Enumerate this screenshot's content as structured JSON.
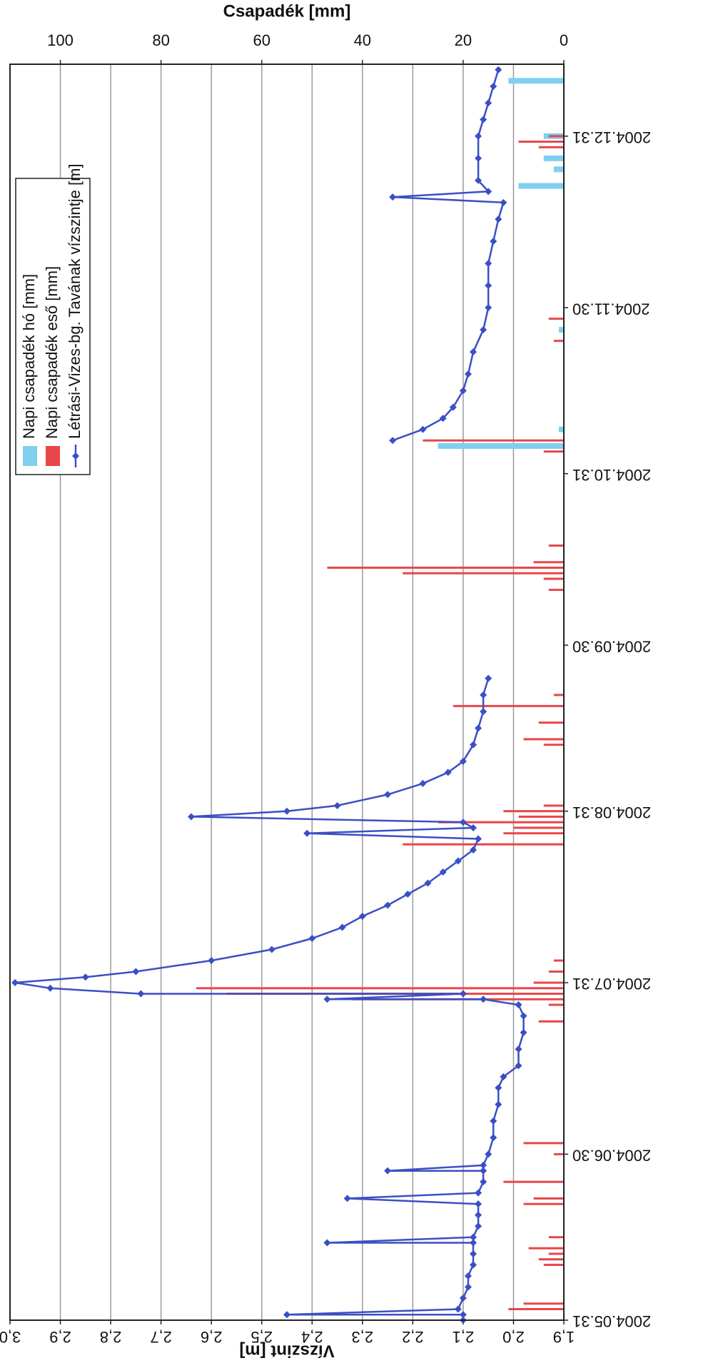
{
  "chart_data": {
    "type": "combo",
    "y_label": "Vízszint [m]",
    "y2_label": "Csapadék [mm]",
    "xlim": [
      "2004.05.31",
      "2005.01.13"
    ],
    "xticks": [
      "2004.05.31",
      "2004.06.30",
      "2004.07.31",
      "2004.08.31",
      "2004.09.30",
      "2004.10.31",
      "2004.11.30",
      "2004.12.31"
    ],
    "ylim": [
      1.9,
      3.0
    ],
    "yticks": [
      {
        "value": 1.9,
        "label": "1,9"
      },
      {
        "value": 2.0,
        "label": "2,0"
      },
      {
        "value": 2.1,
        "label": "2,1"
      },
      {
        "value": 2.2,
        "label": "2,2"
      },
      {
        "value": 2.3,
        "label": "2,3"
      },
      {
        "value": 2.4,
        "label": "2,4"
      },
      {
        "value": 2.5,
        "label": "2,5"
      },
      {
        "value": 2.6,
        "label": "2,6"
      },
      {
        "value": 2.7,
        "label": "2,7"
      },
      {
        "value": 2.8,
        "label": "2,8"
      },
      {
        "value": 2.9,
        "label": "2,9"
      },
      {
        "value": 3.0,
        "label": "3,0"
      }
    ],
    "y2lim": [
      0,
      110
    ],
    "y2ticks": [
      0,
      20,
      40,
      60,
      80,
      100
    ],
    "grid": true,
    "legend": "top-right",
    "series": [
      {
        "name": "Napi csapadék hó [mm]",
        "type": "bar",
        "axis": "y2",
        "color": "#7fd0ef",
        "x": [
          "2004.11.05",
          "2004.11.08",
          "2004.11.26",
          "2004.12.22",
          "2004.12.25",
          "2004.12.27",
          "2004.12.31",
          "2005.01.10"
        ],
        "values": [
          25,
          1,
          1,
          9,
          2,
          4,
          4,
          11
        ]
      },
      {
        "name": "Napi csapadék eső [mm]",
        "type": "bar",
        "axis": "y2",
        "color": "#e8464a",
        "x": [
          "2004.06.02",
          "2004.06.03",
          "2004.06.10",
          "2004.06.11",
          "2004.06.12",
          "2004.06.13",
          "2004.06.15",
          "2004.06.21",
          "2004.06.22",
          "2004.06.25",
          "2004.06.30",
          "2004.07.02",
          "2004.07.24",
          "2004.07.27",
          "2004.07.28",
          "2004.07.29",
          "2004.07.30",
          "2004.07.31",
          "2004.08.02",
          "2004.08.04",
          "2004.08.25",
          "2004.08.27",
          "2004.08.28",
          "2004.08.29",
          "2004.08.30",
          "2004.08.31",
          "2004.09.01",
          "2004.09.12",
          "2004.09.13",
          "2004.09.16",
          "2004.09.19",
          "2004.09.21",
          "2004.10.10",
          "2004.10.12",
          "2004.10.13",
          "2004.10.14",
          "2004.10.15",
          "2004.10.18",
          "2004.11.04",
          "2004.11.06",
          "2004.11.24",
          "2004.11.28",
          "2004.12.29",
          "2004.12.30",
          "2004.12.31"
        ],
        "values": [
          11,
          8,
          4,
          5,
          3,
          7,
          3,
          8,
          6,
          12,
          2,
          8,
          5,
          3,
          42,
          67,
          73,
          6,
          3,
          2,
          32,
          12,
          10,
          25,
          9,
          12,
          4,
          4,
          8,
          5,
          22,
          2,
          3,
          4,
          32,
          47,
          6,
          3,
          4,
          28,
          2,
          3,
          5,
          9,
          3
        ]
      },
      {
        "name": "Létrási-Vizes-bg. Tavának vízszintje [m]",
        "type": "line",
        "axis": "y",
        "color": "#3b4fc4",
        "x": [
          "2004.05.31",
          "2004.06.01",
          "2004.06.01",
          "2004.06.02",
          "2004.06.04",
          "2004.06.06",
          "2004.06.08",
          "2004.06.10",
          "2004.06.12",
          "2004.06.14",
          "2004.06.14",
          "2004.06.15",
          "2004.06.17",
          "2004.06.19",
          "2004.06.21",
          "2004.06.22",
          "2004.06.23",
          "2004.06.25",
          "2004.06.27",
          "2004.06.27",
          "2004.06.28",
          "2004.06.30",
          "2004.07.03",
          "2004.07.06",
          "2004.07.09",
          "2004.07.12",
          "2004.07.14",
          "2004.07.16",
          "2004.07.19",
          "2004.07.22",
          "2004.07.25",
          "2004.07.27",
          "2004.07.28",
          "2004.07.28",
          "2004.07.29",
          "2004.07.29",
          "2004.07.30",
          "2004.07.31",
          "2004.08.01",
          "2004.08.02",
          "2004.08.04",
          "2004.08.06",
          "2004.08.08",
          "2004.08.10",
          "2004.08.12",
          "2004.08.14",
          "2004.08.16",
          "2004.08.18",
          "2004.08.20",
          "2004.08.22",
          "2004.08.24",
          "2004.08.26",
          "2004.08.27",
          "2004.08.28",
          "2004.08.29",
          "2004.08.30",
          "2004.08.31",
          "2004.09.01",
          "2004.09.03",
          "2004.09.05",
          "2004.09.07",
          "2004.09.09",
          "2004.09.12",
          "2004.09.15",
          "2004.09.18",
          "2004.09.21",
          "2004.09.24",
          "2004.10.15",
          "2004.11.06",
          "2004.11.08",
          "2004.11.10",
          "2004.11.12",
          "2004.11.15",
          "2004.11.18",
          "2004.11.22",
          "2004.11.26",
          "2004.11.30",
          "2004.12.04",
          "2004.12.08",
          "2004.12.12",
          "2004.12.16",
          "2004.12.19",
          "2004.12.20",
          "2004.12.21",
          "2004.12.23",
          "2004.12.27",
          "2004.12.31",
          "2005.01.03",
          "2005.01.06",
          "2005.01.09",
          "2005.01.12"
        ],
        "values": [
          2.1,
          2.1,
          2.45,
          2.11,
          2.1,
          2.09,
          2.09,
          2.08,
          2.08,
          2.08,
          2.37,
          2.08,
          2.07,
          2.07,
          2.07,
          2.33,
          2.07,
          2.06,
          2.06,
          2.25,
          2.06,
          2.05,
          2.04,
          2.04,
          2.03,
          2.03,
          2.02,
          1.99,
          1.99,
          1.98,
          1.98,
          1.99,
          2.06,
          2.37,
          2.1,
          2.74,
          2.92,
          2.99,
          2.85,
          2.75,
          2.6,
          2.48,
          2.4,
          2.34,
          2.3,
          2.25,
          2.21,
          2.17,
          2.14,
          2.11,
          2.08,
          2.07,
          2.41,
          2.08,
          2.1,
          2.64,
          2.45,
          2.35,
          2.25,
          2.18,
          2.13,
          2.1,
          2.08,
          2.07,
          2.06,
          2.06,
          2.05,
          null,
          2.24,
          2.18,
          2.14,
          2.12,
          2.1,
          2.09,
          2.08,
          2.06,
          2.05,
          2.05,
          2.05,
          2.04,
          2.03,
          2.02,
          2.24,
          2.05,
          2.07,
          2.07,
          2.07,
          2.06,
          2.05,
          2.04,
          2.03
        ]
      }
    ]
  }
}
